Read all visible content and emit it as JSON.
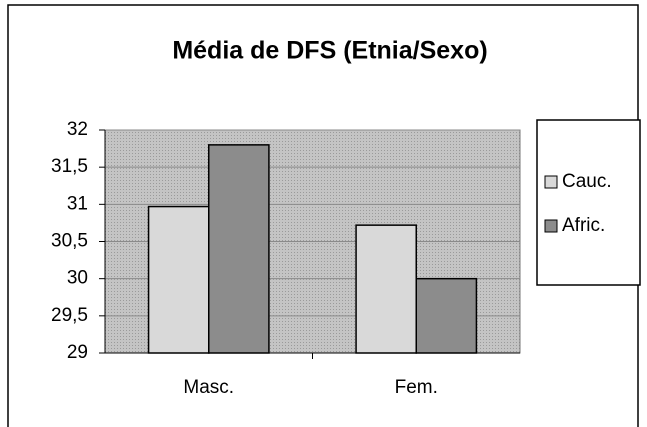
{
  "chart_data": {
    "type": "bar",
    "title": "Média de DFS (Etnia/Sexo)",
    "categories": [
      "Masc.",
      "Fem."
    ],
    "series": [
      {
        "name": "Cauc.",
        "color": "#d9d9d9",
        "values": [
          30.97,
          30.72
        ]
      },
      {
        "name": "Afric.",
        "color": "#8c8c8c",
        "values": [
          31.8,
          30.0
        ]
      }
    ],
    "ylim": [
      29,
      32
    ],
    "yticks": [
      29,
      {
        "value": 29.5,
        "label": "29,5"
      },
      30,
      {
        "value": 30.5,
        "label": "30,5"
      },
      31,
      {
        "value": 31.5,
        "label": "31,5"
      },
      32
    ],
    "grid": true,
    "legend": "right"
  }
}
